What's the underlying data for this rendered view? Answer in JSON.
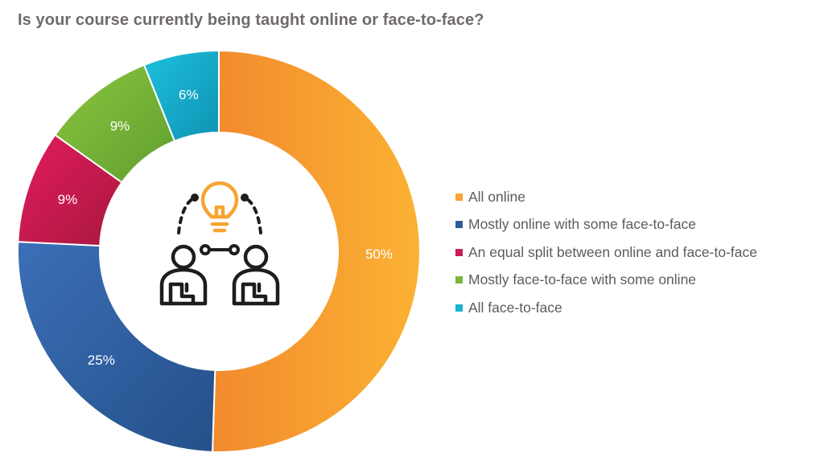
{
  "title": "Is your course currently being taught online or face-to-face?",
  "chart_data": {
    "type": "pie",
    "variant": "donut",
    "title": "Is your course currently being taught online or face-to-face?",
    "legend_position": "right",
    "categories": [
      "All online",
      "Mostly online with some face-to-face",
      "An equal split between online and face-to-face",
      "Mostly face-to-face with some online",
      "All face-to-face"
    ],
    "values": [
      50,
      25,
      9,
      9,
      6
    ],
    "labels": [
      "50%",
      "25%",
      "9%",
      "9%",
      "6%"
    ],
    "colors": [
      "#f7a432",
      "#2f5d9b",
      "#c91d57",
      "#7ab63c",
      "#18b1cf"
    ],
    "center_icon": "idea-collaboration-icon"
  }
}
